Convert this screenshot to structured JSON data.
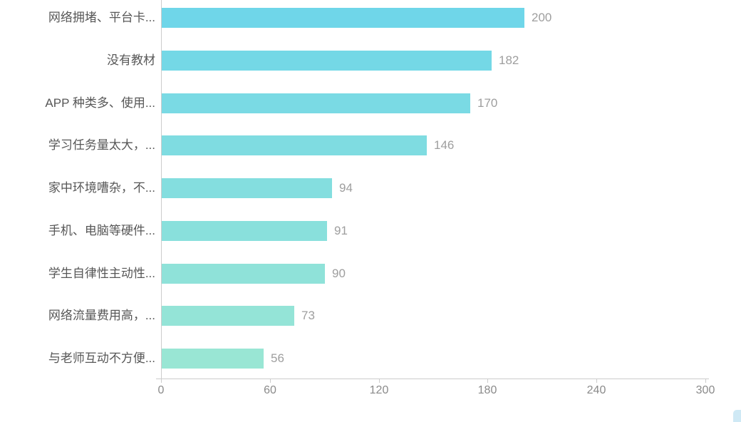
{
  "chart_data": {
    "type": "bar",
    "orientation": "horizontal",
    "title": "",
    "xlabel": "",
    "ylabel": "",
    "categories": [
      "网络拥堵、平台卡...",
      "没有教材",
      "APP 种类多、使用...",
      "学习任务量太大，...",
      "家中环境嘈杂，不...",
      "手机、电脑等硬件...",
      "学生自律性主动性...",
      "网络流量费用高，...",
      "与老师互动不方便..."
    ],
    "values": [
      200,
      182,
      170,
      146,
      94,
      91,
      90,
      73,
      56
    ],
    "xlim": [
      0,
      300
    ],
    "x_ticks": [
      0,
      60,
      120,
      180,
      240,
      300
    ],
    "grid": false,
    "legend_position": "none",
    "value_labels_shown": true,
    "colors": {
      "bar_gradient_start": "#6FD6E9",
      "bar_gradient_end": "#99E6D4",
      "axis_line": "#cccccc",
      "tick_label": "#8a8a8a",
      "category_label": "#575757",
      "value_label": "#9e9e9e",
      "background": "#ffffff",
      "corner_widget": "#cfe9f5"
    }
  }
}
